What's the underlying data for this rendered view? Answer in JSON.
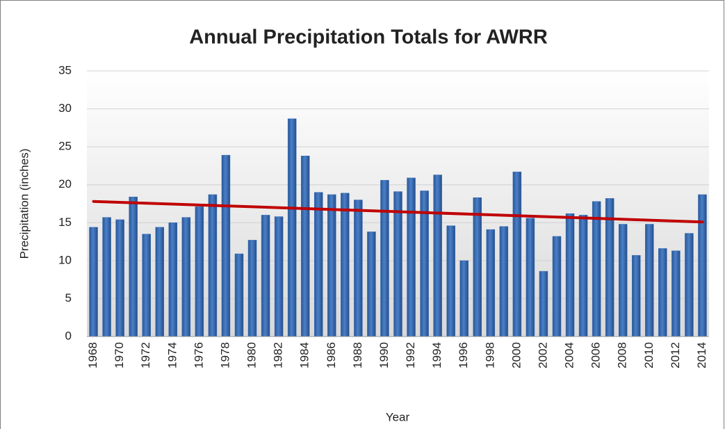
{
  "chart_data": {
    "type": "bar",
    "title": "Annual Precipitation Totals for AWRR",
    "x_label": "Year",
    "y_label": "Precipitation (inches)",
    "categories": [
      "1968",
      null,
      "1970",
      null,
      "1972",
      null,
      "1974",
      null,
      "1976",
      null,
      "1978",
      null,
      "1980",
      null,
      "1982",
      null,
      "1984",
      null,
      "1986",
      null,
      "1988",
      null,
      "1990",
      null,
      "1992",
      null,
      "1994",
      null,
      "1996",
      null,
      "1998",
      null,
      "2000",
      null,
      "2002",
      null,
      "2004",
      null,
      "2006",
      null,
      "2008",
      null,
      "2010",
      null,
      "2012",
      null,
      "2014"
    ],
    "values": [
      14.4,
      15.7,
      15.4,
      18.4,
      13.5,
      14.4,
      15.0,
      15.7,
      17.1,
      18.7,
      23.9,
      10.9,
      12.7,
      16.0,
      15.8,
      28.7,
      23.8,
      19.0,
      18.7,
      18.9,
      18.0,
      13.8,
      20.6,
      19.1,
      20.9,
      19.2,
      21.3,
      14.6,
      10.0,
      18.3,
      14.1,
      14.5,
      21.7,
      15.6,
      8.6,
      13.2,
      16.2,
      16.0,
      17.8,
      18.2,
      14.8,
      10.7,
      14.8,
      11.6,
      11.3,
      13.6,
      18.7
    ],
    "color": "#3b6fb6",
    "trendline": {
      "start": 17.8,
      "end": 15.1,
      "color": "#c00000"
    },
    "ylim": [
      0,
      35
    ],
    "yticks": [
      0,
      5,
      10,
      15,
      20,
      25,
      30,
      35
    ],
    "grid": true
  }
}
